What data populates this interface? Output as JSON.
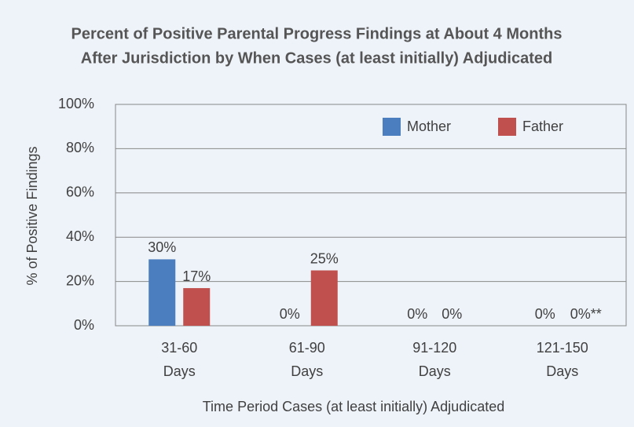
{
  "chart_data": {
    "type": "bar",
    "title": [
      "Percent of Positive Parental Progress Findings at About 4 Months",
      "After Jurisdiction by When Cases (at least initially) Adjudicated"
    ],
    "x_label": "Time Period Cases (at least initially) Adjudicated",
    "y_label": "% of Positive Findings",
    "categories": [
      [
        "31-60",
        "Days"
      ],
      [
        "61-90",
        "Days"
      ],
      [
        "91-120",
        "Days"
      ],
      [
        "121-150",
        "Days"
      ]
    ],
    "series": [
      {
        "name": "Mother",
        "color": "#4a7ebf",
        "values": [
          30,
          0,
          0,
          0
        ],
        "value_labels": [
          "30%",
          "0%",
          "0%",
          "0%"
        ]
      },
      {
        "name": "Father",
        "color": "#c0504d",
        "values": [
          17,
          25,
          0,
          0
        ],
        "value_labels": [
          "17%",
          "25%",
          "0%",
          "0%**"
        ]
      }
    ],
    "ylim": [
      0,
      100
    ],
    "yticks": [
      {
        "value": 0,
        "label": "0%"
      },
      {
        "value": 20,
        "label": "20%"
      },
      {
        "value": 40,
        "label": "40%"
      },
      {
        "value": 60,
        "label": "60%"
      },
      {
        "value": 80,
        "label": "80%"
      },
      {
        "value": 100,
        "label": "100%"
      }
    ],
    "grid": true,
    "legend": "top-right"
  }
}
